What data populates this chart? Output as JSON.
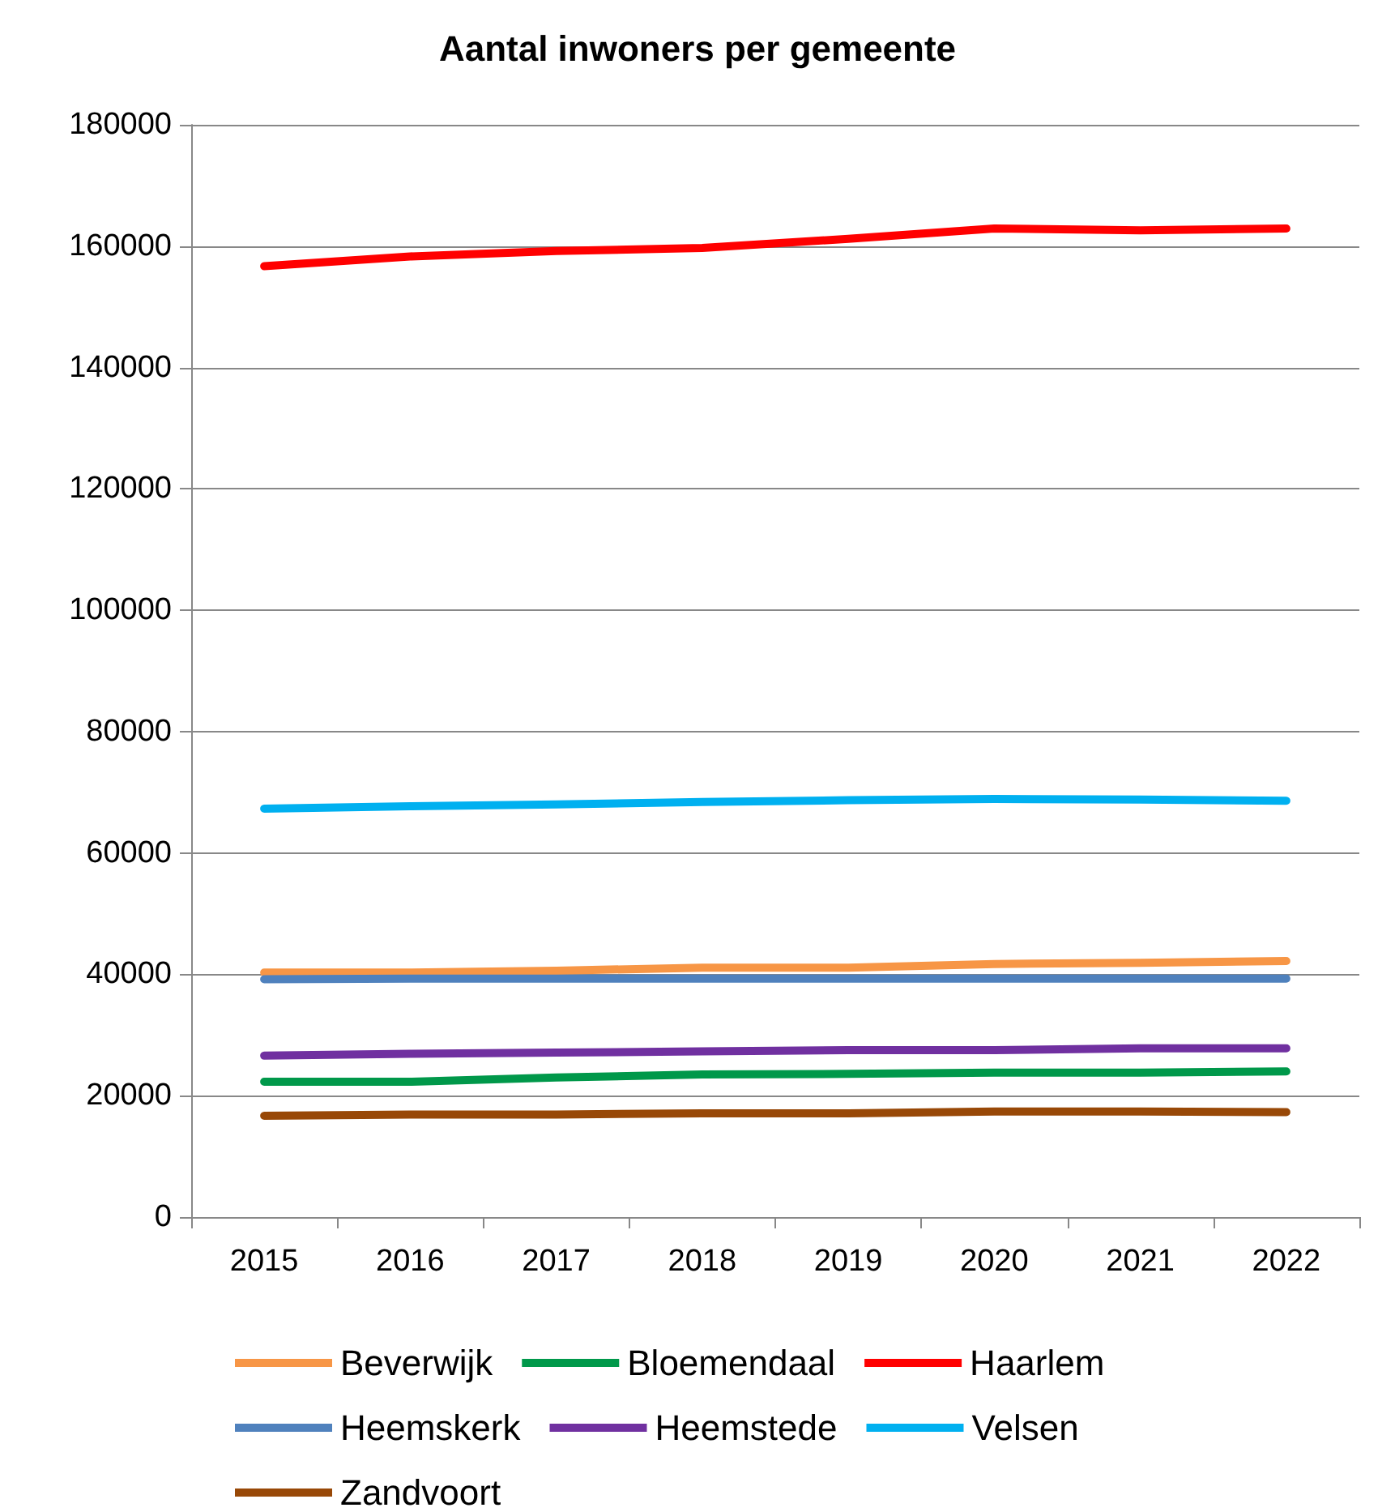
{
  "chart_data": {
    "type": "line",
    "title": "Aantal inwoners per gemeente",
    "categories": [
      "2015",
      "2016",
      "2017",
      "2018",
      "2019",
      "2020",
      "2021",
      "2022"
    ],
    "series": [
      {
        "name": "Beverwijk",
        "color": "#f79646",
        "values": [
          40300,
          40300,
          40600,
          41100,
          41100,
          41700,
          41900,
          42200
        ]
      },
      {
        "name": "Bloemendaal",
        "color": "#00984a",
        "values": [
          22300,
          22300,
          23000,
          23500,
          23600,
          23800,
          23800,
          24000
        ]
      },
      {
        "name": "Haarlem",
        "color": "#ff0000",
        "values": [
          156700,
          158300,
          159200,
          159700,
          161200,
          162900,
          162600,
          162900
        ]
      },
      {
        "name": "Heemskerk",
        "color": "#4f81bd",
        "values": [
          39200,
          39300,
          39300,
          39300,
          39300,
          39300,
          39300,
          39300
        ]
      },
      {
        "name": "Heemstede",
        "color": "#7030a0",
        "values": [
          26600,
          26900,
          27100,
          27300,
          27500,
          27500,
          27800,
          27800
        ]
      },
      {
        "name": "Velsen",
        "color": "#00b0f0",
        "values": [
          67300,
          67700,
          68000,
          68400,
          68700,
          68900,
          68800,
          68600
        ]
      },
      {
        "name": "Zandvoort",
        "color": "#984807",
        "values": [
          16700,
          16900,
          16900,
          17100,
          17100,
          17400,
          17400,
          17300
        ]
      }
    ],
    "ylim": [
      0,
      180000
    ],
    "yticks": [
      0,
      20000,
      40000,
      60000,
      80000,
      100000,
      120000,
      140000,
      160000,
      180000
    ],
    "grid": "y",
    "legend": "bottom",
    "marker": "none",
    "line_style": "solid"
  }
}
